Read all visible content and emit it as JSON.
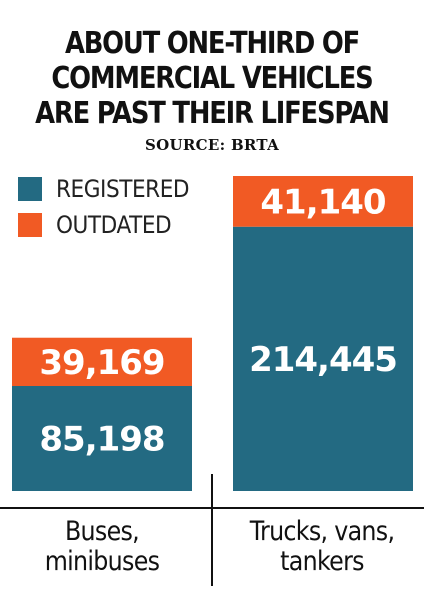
{
  "header": {
    "title_lines": [
      "ABOUT ONE-THIRD OF",
      "COMMERCIAL VEHICLES",
      "ARE PAST THEIR LIFESPAN"
    ],
    "source": "SOURCE: BRTA"
  },
  "colors": {
    "registered": "#236a82",
    "outdated": "#f15a24",
    "text": "#111111"
  },
  "chart_data": {
    "type": "bar",
    "stacked": true,
    "title": "ABOUT ONE-THIRD OF COMMERCIAL VEHICLES ARE PAST THEIR LIFESPAN",
    "categories": [
      "Buses, minibuses",
      "Trucks, vans, tankers"
    ],
    "category_lines": [
      [
        "Buses,",
        "minibuses"
      ],
      [
        "Trucks, vans,",
        "tankers"
      ]
    ],
    "series": [
      {
        "name": "REGISTERED",
        "values": [
          85198,
          214445
        ],
        "labels": [
          "85,198",
          "214,445"
        ]
      },
      {
        "name": "OUTDATED",
        "values": [
          39169,
          41140
        ],
        "labels": [
          "39,169",
          "41,140"
        ]
      }
    ],
    "legend": {
      "position": "top-left",
      "items": [
        "REGISTERED",
        "OUTDATED"
      ]
    },
    "grid": false,
    "xlabel": "",
    "ylabel": ""
  }
}
